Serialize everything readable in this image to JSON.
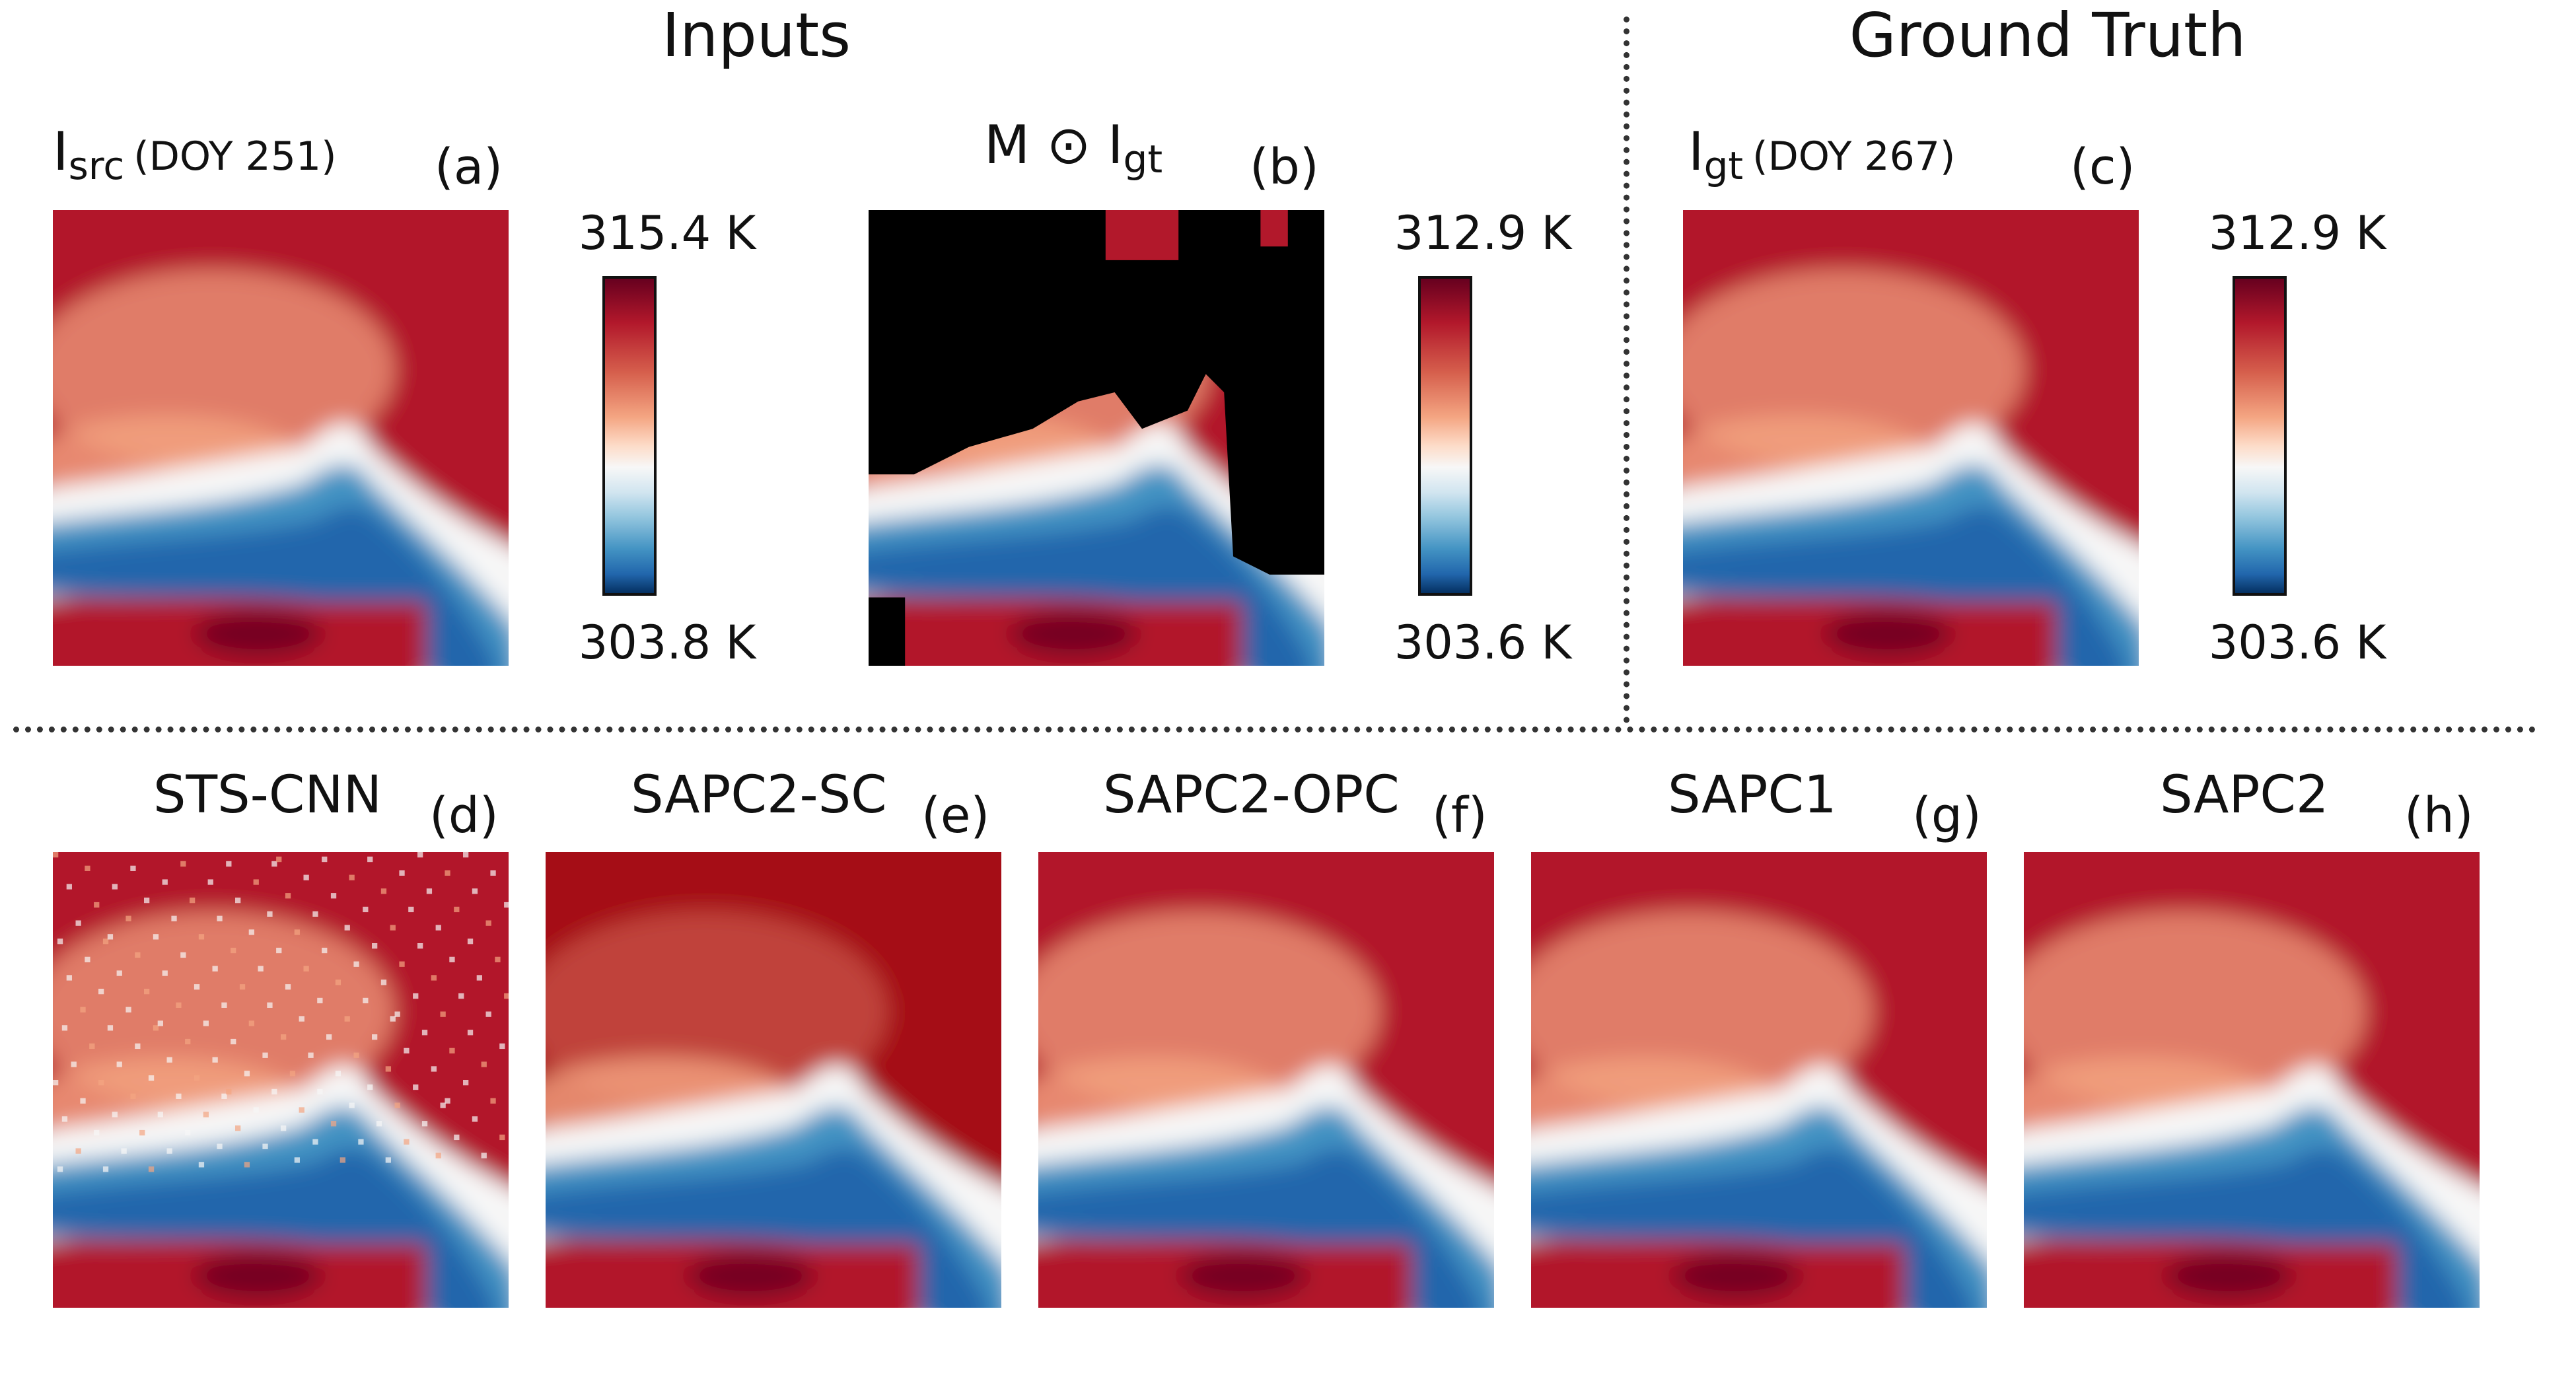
{
  "header": {
    "inputs_title": "Inputs",
    "ground_truth_title": "Ground Truth"
  },
  "panels": {
    "a": {
      "label_main": "I",
      "label_sub": "src",
      "label_doy": "(DOY 251)",
      "tag": "(a)"
    },
    "b": {
      "label_main": "M ⊙ I",
      "label_sub": "gt",
      "tag": "(b)"
    },
    "c": {
      "label_main": "I",
      "label_sub": "gt",
      "label_doy": "(DOY 267)",
      "tag": "(c)"
    },
    "d": {
      "method": "STS-CNN",
      "tag": "(d)"
    },
    "e": {
      "method": "SAPC2-SC",
      "tag": "(e)"
    },
    "f": {
      "method": "SAPC2-OPC",
      "tag": "(f)"
    },
    "g": {
      "method": "SAPC1",
      "tag": "(g)"
    },
    "h": {
      "method": "SAPC2",
      "tag": "(h)"
    }
  },
  "colorbars": [
    {
      "max": "315.4 K",
      "min": "303.8 K"
    },
    {
      "max": "312.9 K",
      "min": "303.6 K"
    },
    {
      "max": "312.9 K",
      "min": "303.6 K"
    }
  ],
  "colors": {
    "hot": "#b2182b",
    "warm": "#f4a582",
    "neutral": "#f7f7f7",
    "cool": "#4393c3",
    "cold": "#2166ac",
    "mask": "#000000"
  }
}
